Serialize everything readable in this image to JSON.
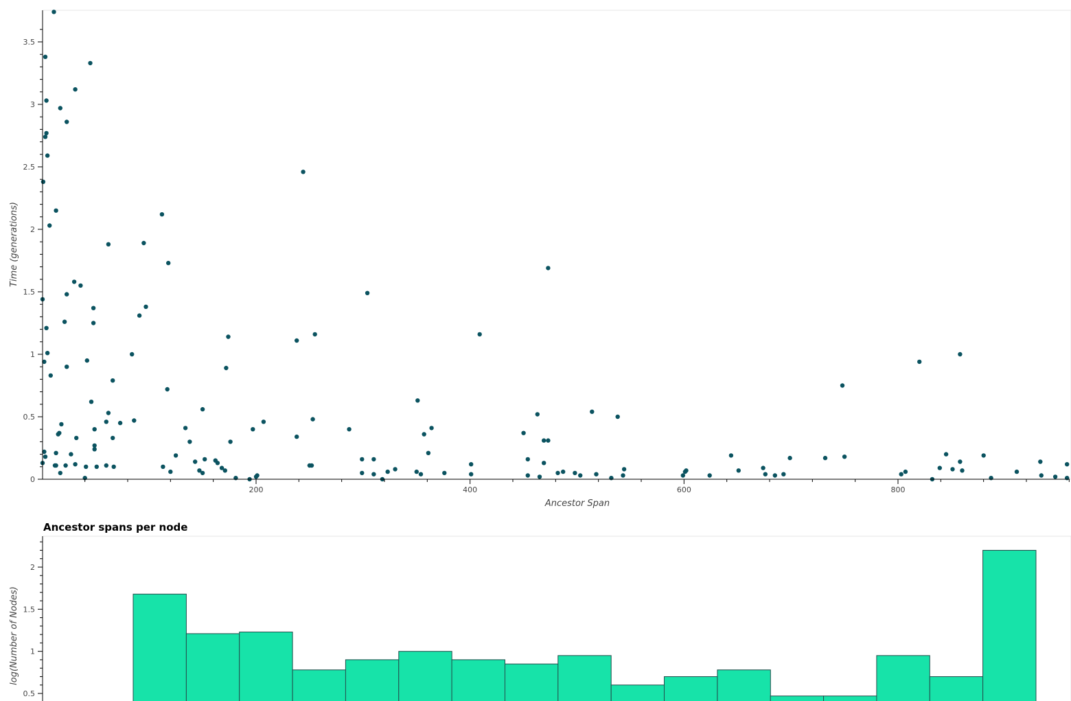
{
  "colors": {
    "point": "#0b5360",
    "bar_fill": "#17e3a9",
    "bar_stroke": "#234c4b",
    "axis": "#000000",
    "frame": "#e6e6e6"
  },
  "chart_data": [
    {
      "type": "scatter",
      "title": "",
      "xlabel": "Ancestor Span",
      "ylabel": "Time (generations)",
      "xlim": [
        0,
        955
      ],
      "ylim": [
        0,
        3.75
      ],
      "x_ticks": [
        200,
        400,
        600,
        800
      ],
      "y_ticks": [
        0,
        0.5,
        1,
        1.5,
        2,
        2.5,
        3,
        3.5
      ],
      "grid": false,
      "points": [
        [
          11,
          3.74
        ],
        [
          3,
          3.38
        ],
        [
          45,
          3.33
        ],
        [
          31,
          3.12
        ],
        [
          4,
          3.03
        ],
        [
          17,
          2.97
        ],
        [
          23,
          2.86
        ],
        [
          4,
          2.77
        ],
        [
          3,
          2.74
        ],
        [
          5,
          2.59
        ],
        [
          244,
          2.46
        ],
        [
          1,
          2.38
        ],
        [
          13,
          2.15
        ],
        [
          7,
          2.03
        ],
        [
          112,
          2.12
        ],
        [
          95,
          1.89
        ],
        [
          62,
          1.88
        ],
        [
          118,
          1.73
        ],
        [
          473,
          1.69
        ],
        [
          0,
          1.44
        ],
        [
          30,
          1.58
        ],
        [
          36,
          1.55
        ],
        [
          23,
          1.48
        ],
        [
          48,
          1.37
        ],
        [
          97,
          1.38
        ],
        [
          91,
          1.31
        ],
        [
          21,
          1.26
        ],
        [
          48,
          1.25
        ],
        [
          304,
          1.49
        ],
        [
          4,
          1.21
        ],
        [
          174,
          1.14
        ],
        [
          238,
          1.11
        ],
        [
          255,
          1.16
        ],
        [
          409,
          1.16
        ],
        [
          5,
          1.01
        ],
        [
          2,
          0.94
        ],
        [
          42,
          0.95
        ],
        [
          84,
          1.0
        ],
        [
          23,
          0.9
        ],
        [
          172,
          0.89
        ],
        [
          8,
          0.83
        ],
        [
          66,
          0.79
        ],
        [
          117,
          0.72
        ],
        [
          748,
          0.75
        ],
        [
          820,
          0.94
        ],
        [
          858,
          1.0
        ],
        [
          46,
          0.62
        ],
        [
          351,
          0.63
        ],
        [
          150,
          0.56
        ],
        [
          62,
          0.53
        ],
        [
          463,
          0.52
        ],
        [
          514,
          0.54
        ],
        [
          538,
          0.5
        ],
        [
          18,
          0.44
        ],
        [
          60,
          0.46
        ],
        [
          73,
          0.45
        ],
        [
          86,
          0.47
        ],
        [
          207,
          0.46
        ],
        [
          253,
          0.48
        ],
        [
          49,
          0.4
        ],
        [
          134,
          0.41
        ],
        [
          197,
          0.4
        ],
        [
          287,
          0.4
        ],
        [
          364,
          0.41
        ],
        [
          16,
          0.37
        ],
        [
          15,
          0.36
        ],
        [
          32,
          0.33
        ],
        [
          66,
          0.33
        ],
        [
          49,
          0.27
        ],
        [
          49,
          0.24
        ],
        [
          138,
          0.3
        ],
        [
          176,
          0.3
        ],
        [
          238,
          0.34
        ],
        [
          357,
          0.36
        ],
        [
          450,
          0.37
        ],
        [
          469,
          0.31
        ],
        [
          473,
          0.31
        ],
        [
          2,
          0.22
        ],
        [
          3,
          0.18
        ],
        [
          13,
          0.21
        ],
        [
          27,
          0.2
        ],
        [
          125,
          0.19
        ],
        [
          152,
          0.16
        ],
        [
          162,
          0.15
        ],
        [
          299,
          0.16
        ],
        [
          310,
          0.16
        ],
        [
          361,
          0.21
        ],
        [
          454,
          0.16
        ],
        [
          0,
          0.13
        ],
        [
          12,
          0.11
        ],
        [
          13,
          0.11
        ],
        [
          22,
          0.11
        ],
        [
          31,
          0.12
        ],
        [
          41,
          0.1
        ],
        [
          51,
          0.1
        ],
        [
          60,
          0.11
        ],
        [
          67,
          0.1
        ],
        [
          113,
          0.1
        ],
        [
          143,
          0.14
        ],
        [
          164,
          0.13
        ],
        [
          250,
          0.11
        ],
        [
          252,
          0.11
        ],
        [
          401,
          0.12
        ],
        [
          469,
          0.13
        ],
        [
          644,
          0.19
        ],
        [
          699,
          0.17
        ],
        [
          732,
          0.17
        ],
        [
          750,
          0.18
        ],
        [
          845,
          0.2
        ],
        [
          858,
          0.14
        ],
        [
          880,
          0.19
        ],
        [
          933,
          0.14
        ],
        [
          958,
          0.12
        ],
        [
          17,
          0.05
        ],
        [
          40,
          0.01
        ],
        [
          120,
          0.06
        ],
        [
          147,
          0.07
        ],
        [
          150,
          0.05
        ],
        [
          168,
          0.09
        ],
        [
          171,
          0.07
        ],
        [
          181,
          0.01
        ],
        [
          194,
          0.0
        ],
        [
          200,
          0.02
        ],
        [
          201,
          0.03
        ],
        [
          299,
          0.05
        ],
        [
          310,
          0.04
        ],
        [
          318,
          0.0
        ],
        [
          323,
          0.06
        ],
        [
          330,
          0.08
        ],
        [
          350,
          0.06
        ],
        [
          354,
          0.04
        ],
        [
          376,
          0.05
        ],
        [
          401,
          0.04
        ],
        [
          454,
          0.03
        ],
        [
          465,
          0.02
        ],
        [
          482,
          0.05
        ],
        [
          487,
          0.06
        ],
        [
          498,
          0.05
        ],
        [
          503,
          0.03
        ],
        [
          518,
          0.04
        ],
        [
          532,
          0.01
        ],
        [
          543,
          0.03
        ],
        [
          544,
          0.08
        ],
        [
          599,
          0.03
        ],
        [
          601,
          0.06
        ],
        [
          602,
          0.07
        ],
        [
          624,
          0.03
        ],
        [
          651,
          0.07
        ],
        [
          674,
          0.09
        ],
        [
          676,
          0.04
        ],
        [
          685,
          0.03
        ],
        [
          693,
          0.04
        ],
        [
          803,
          0.04
        ],
        [
          807,
          0.06
        ],
        [
          832,
          0.0
        ],
        [
          839,
          0.09
        ],
        [
          851,
          0.08
        ],
        [
          860,
          0.07
        ],
        [
          887,
          0.01
        ],
        [
          911,
          0.06
        ],
        [
          934,
          0.03
        ],
        [
          947,
          0.02
        ],
        [
          958,
          0.01
        ]
      ]
    },
    {
      "type": "bar",
      "title": "Ancestor spans per node",
      "xlabel": "",
      "ylabel": "log(Number of Nodes)",
      "y_ticks": [
        0.5,
        1,
        1.5,
        2
      ],
      "ylim": [
        0,
        2.38
      ],
      "grid": false,
      "values": [
        1.68,
        1.21,
        1.23,
        0.78,
        0.9,
        1.0,
        0.9,
        0.85,
        0.95,
        0.6,
        0.7,
        0.78,
        0.47,
        0.47,
        0.95,
        0.7,
        2.2
      ]
    }
  ]
}
